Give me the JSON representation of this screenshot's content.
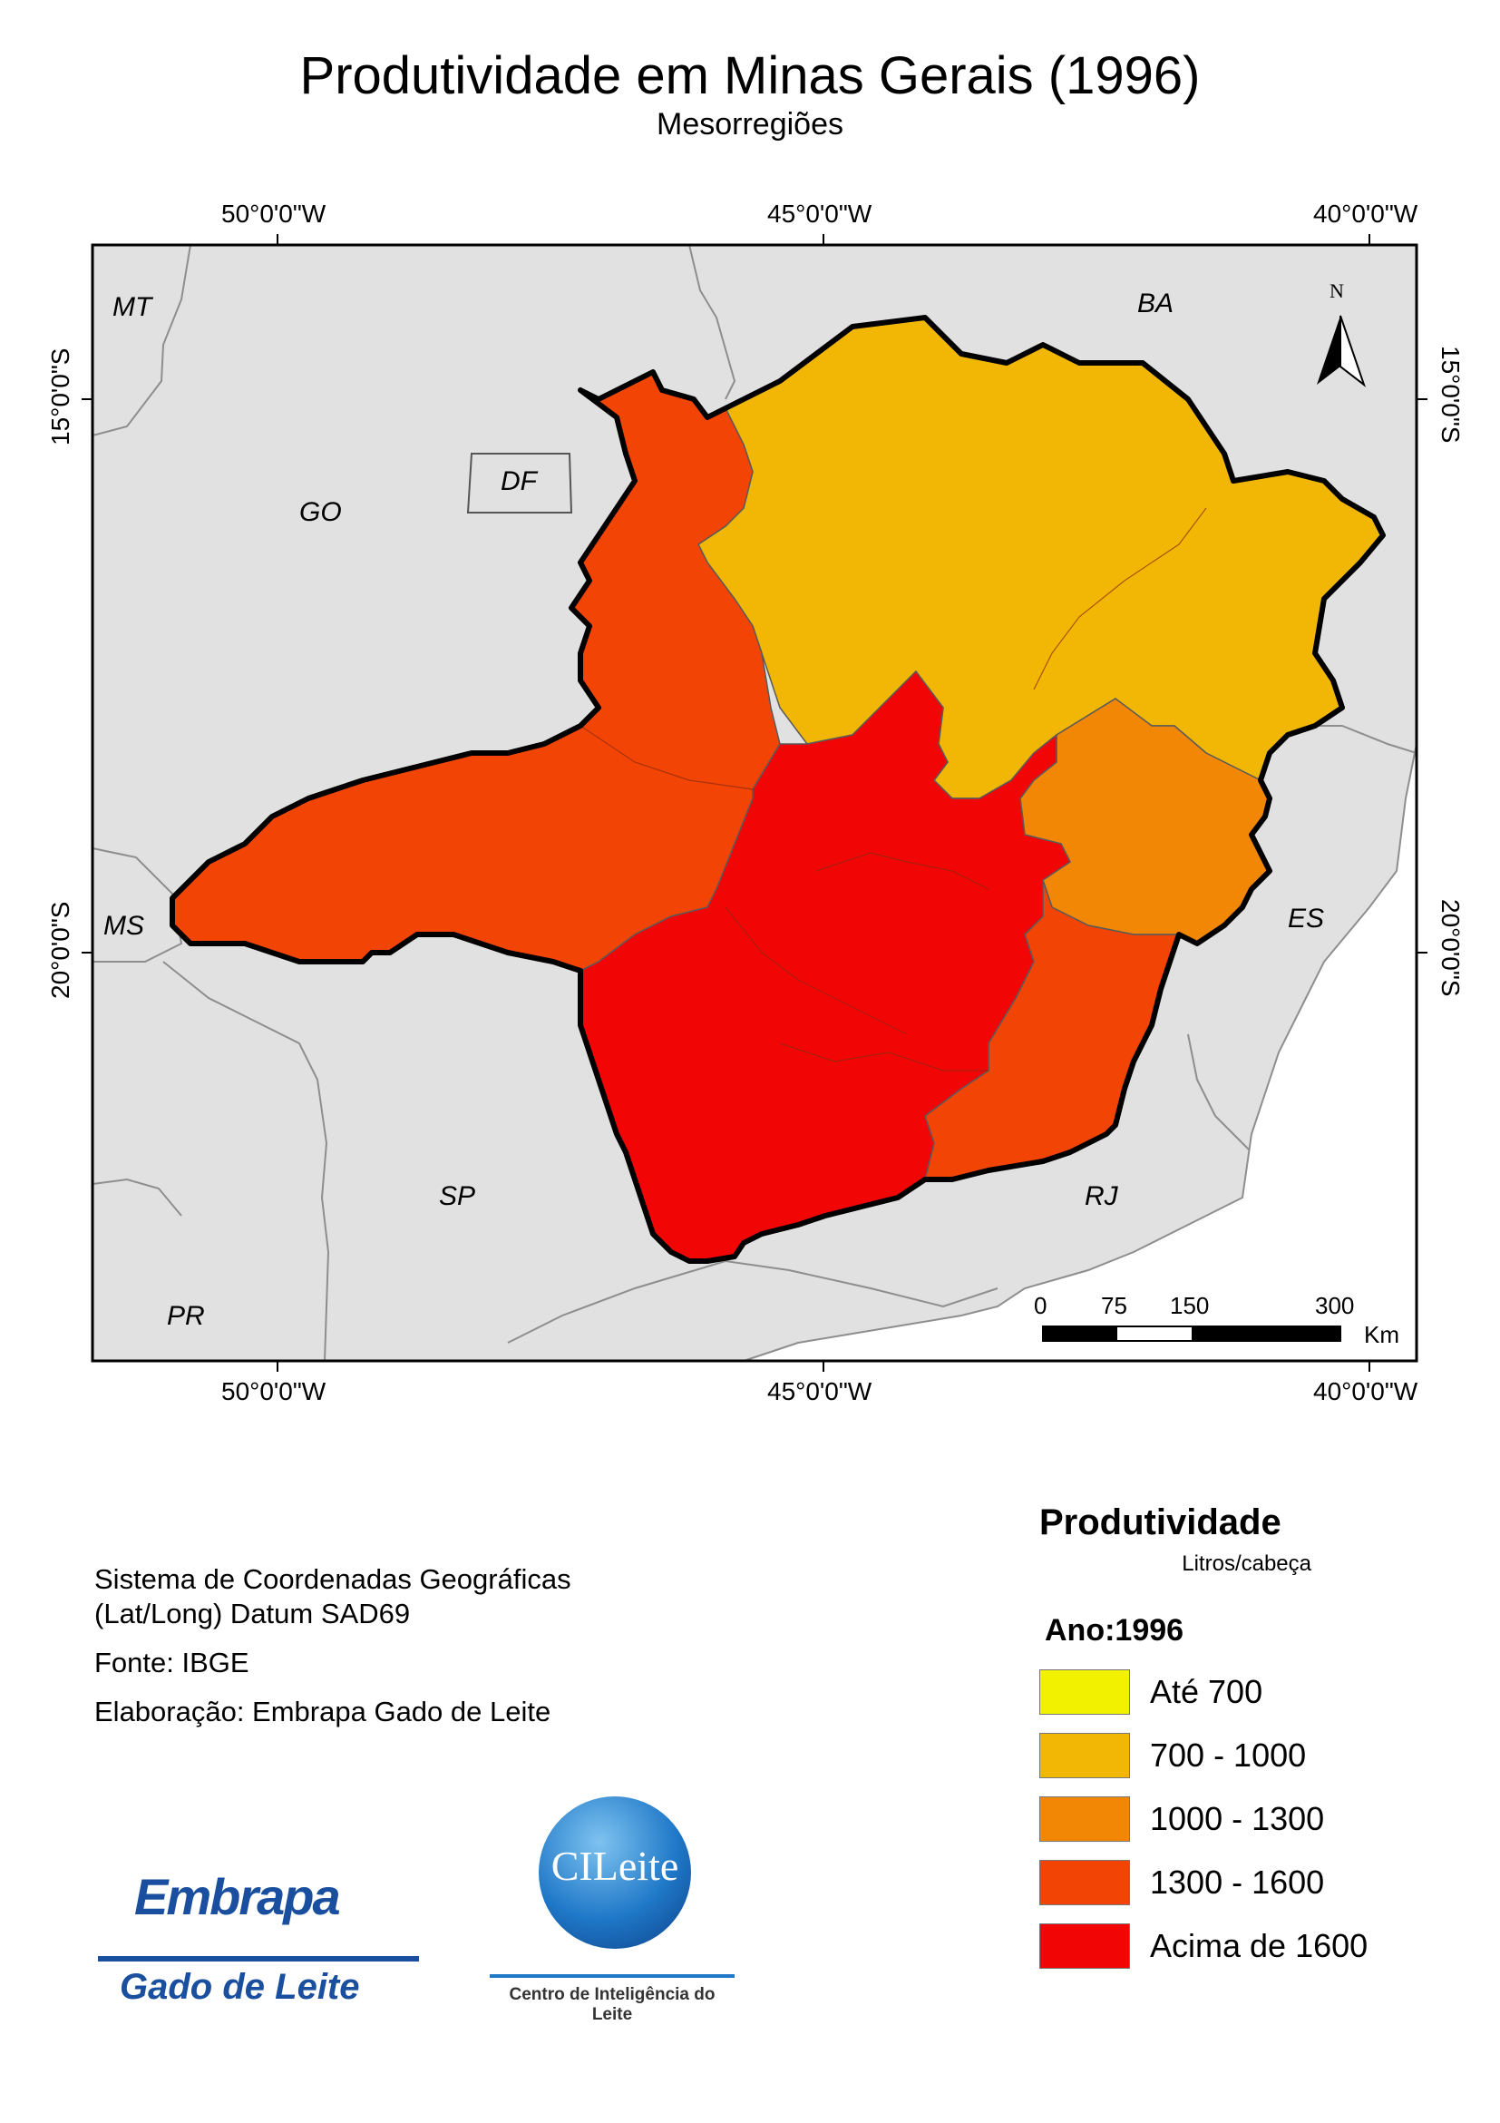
{
  "title": "Produtividade em Minas Gerais (1996)",
  "subtitle": "Mesorregiões",
  "graticule": {
    "lon_labels": [
      "50°0'0\"W",
      "45°0'0\"W",
      "40°0'0\"W"
    ],
    "lat_labels": [
      "15°0'0\"S",
      "20°0'0\"S"
    ]
  },
  "states": {
    "MT": "MT",
    "BA": "BA",
    "GO": "GO",
    "DF": "DF",
    "MS": "MS",
    "ES": "ES",
    "SP": "SP",
    "RJ": "RJ",
    "PR": "PR"
  },
  "north_arrow": "N",
  "scale_bar": {
    "ticks": [
      "0",
      "75",
      "150",
      "300"
    ],
    "unit": "Km"
  },
  "info": {
    "crs_line1": "Sistema de Coordenadas Geográficas",
    "crs_line2": "(Lat/Long) Datum SAD69",
    "source": "Fonte: IBGE",
    "author": "Elaboração: Embrapa Gado de Leite"
  },
  "legend": {
    "title": "Produtividade",
    "unit": "Litros/cabeça",
    "year": "Ano:1996",
    "classes": [
      {
        "label": "Até 700",
        "color": "#f2f200"
      },
      {
        "label": "700 - 1000",
        "color": "#f2b705"
      },
      {
        "label": "1000 - 1300",
        "color": "#f28705"
      },
      {
        "label": "1300 - 1600",
        "color": "#f24405"
      },
      {
        "label": "Acima de 1600",
        "color": "#f20505"
      }
    ]
  },
  "logos": {
    "embrapa_word": "Embrapa",
    "embrapa_sub": "Gado de Leite",
    "cileite_word": "CILeite",
    "cileite_sub": "Centro de Inteligência do Leite"
  },
  "colors": {
    "background": "#e1e1e1",
    "class_700_1000": "#f2b705",
    "class_1000_1300": "#f28705",
    "class_1300_1600": "#f24405",
    "class_above_1600": "#f20505"
  }
}
